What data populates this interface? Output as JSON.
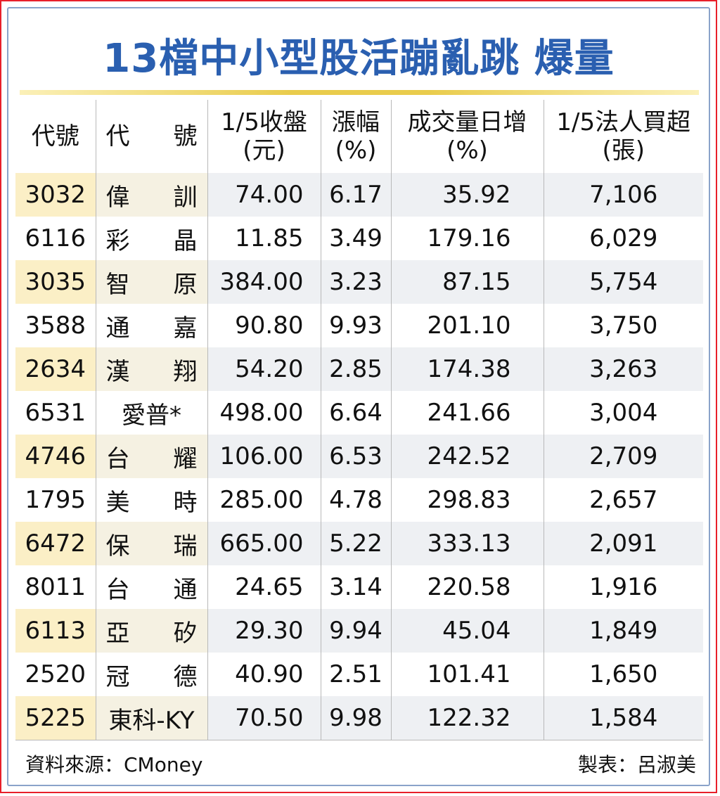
{
  "title": "13檔中小型股活蹦亂跳 爆量",
  "headers": {
    "code": "代號",
    "name": "代　號",
    "close_line1": "1/5收盤",
    "close_line2": "(元)",
    "change_line1": "漲幅",
    "change_line2": "(%)",
    "volume_line1": "成交量日增",
    "volume_line2": "(%)",
    "inst_line1": "1/5法人買超",
    "inst_line2": "(張)"
  },
  "rows": [
    {
      "code": "3032",
      "name": "偉訓",
      "close": "74.00",
      "change": "6.17",
      "volume": "35.92",
      "inst": "7,106"
    },
    {
      "code": "6116",
      "name": "彩晶",
      "close": "11.85",
      "change": "3.49",
      "volume": "179.16",
      "inst": "6,029"
    },
    {
      "code": "3035",
      "name": "智原",
      "close": "384.00",
      "change": "3.23",
      "volume": "87.15",
      "inst": "5,754"
    },
    {
      "code": "3588",
      "name": "通嘉",
      "close": "90.80",
      "change": "9.93",
      "volume": "201.10",
      "inst": "3,750"
    },
    {
      "code": "2634",
      "name": "漢翔",
      "close": "54.20",
      "change": "2.85",
      "volume": "174.38",
      "inst": "3,263"
    },
    {
      "code": "6531",
      "name": "愛普*",
      "close": "498.00",
      "change": "6.64",
      "volume": "241.66",
      "inst": "3,004"
    },
    {
      "code": "4746",
      "name": "台耀",
      "close": "106.00",
      "change": "6.53",
      "volume": "242.52",
      "inst": "2,709"
    },
    {
      "code": "1795",
      "name": "美時",
      "close": "285.00",
      "change": "4.78",
      "volume": "298.83",
      "inst": "2,657"
    },
    {
      "code": "6472",
      "name": "保瑞",
      "close": "665.00",
      "change": "5.22",
      "volume": "333.13",
      "inst": "2,091"
    },
    {
      "code": "8011",
      "name": "台通",
      "close": "24.65",
      "change": "3.14",
      "volume": "220.58",
      "inst": "1,916"
    },
    {
      "code": "6113",
      "name": "亞矽",
      "close": "29.30",
      "change": "9.94",
      "volume": "45.04",
      "inst": "1,849"
    },
    {
      "code": "2520",
      "name": "冠德",
      "close": "40.90",
      "change": "2.51",
      "volume": "101.41",
      "inst": "1,650"
    },
    {
      "code": "5225",
      "name": "東科-KY",
      "close": "70.50",
      "change": "9.98",
      "volume": "122.32",
      "inst": "1,584"
    }
  ],
  "footer": {
    "source": "資料來源：CMoney",
    "credit": "製表：呂淑美"
  },
  "colors": {
    "title": "#2a5fb0",
    "outer_border": "#e8202a",
    "inner_border": "#8aa3c9",
    "stripe_code": "#fbefc6",
    "stripe_row": "#eef0f3",
    "rule_gold": "#e9cc4c"
  }
}
